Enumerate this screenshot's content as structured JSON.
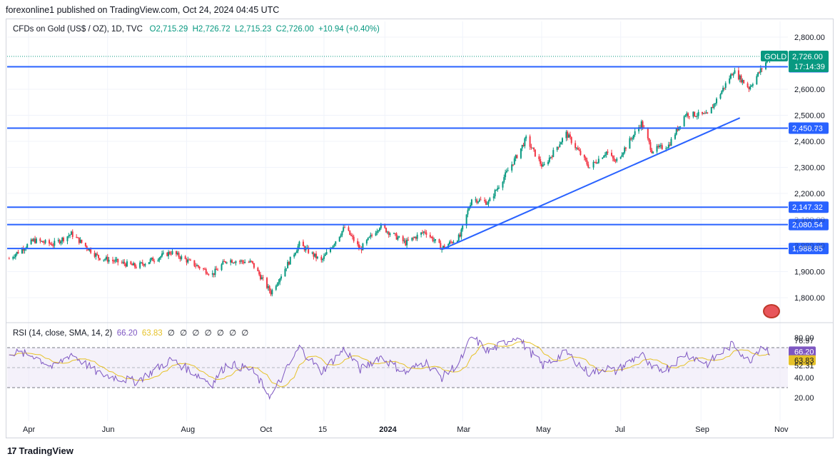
{
  "header": {
    "published": "forexonline1 published on TradingView.com, Oct 24, 2024 04:45 UTC"
  },
  "legend": {
    "symbol": "CFDs on Gold (US$ / OZ), 1D, TVC",
    "open": "O2,715.29",
    "high": "H2,726.72",
    "low": "L2,715.23",
    "close": "C2,726.00",
    "change": "+10.94 (+0.40%)"
  },
  "rsi_legend": {
    "title": "RSI (14, close, SMA, 14, 2)",
    "rsi_value": "66.20",
    "sma_value": "63.83",
    "placeholders": [
      "∅",
      "∅",
      "∅",
      "∅",
      "∅",
      "∅",
      "∅"
    ]
  },
  "footer": {
    "brand": "TradingView",
    "logo": "17"
  },
  "colors": {
    "up": "#089981",
    "down": "#f23645",
    "line": "#2962ff",
    "rsi": "#7e57c2",
    "sma": "#e6c229",
    "band": "#ede7f6"
  },
  "chart_data": [
    {
      "type": "candlestick",
      "title": "CFDs on Gold (US$ / OZ), 1D, TVC",
      "symbol_tag": "GOLD",
      "countdown": "17:14:39",
      "ylim": [
        1730,
        2830
      ],
      "y_ticks": [
        "2,800.00",
        "2,600.00",
        "2,500.00",
        "2,400.00",
        "2,300.00",
        "2,200.00",
        "2,100.00",
        "2,000.00",
        "1,900.00",
        "1,800.00"
      ],
      "y_tick_values": [
        2800,
        2600,
        2500,
        2400,
        2300,
        2200,
        2100,
        2000,
        1900,
        1800
      ],
      "x_ticks": [
        "Apr",
        "Jun",
        "Aug",
        "Oct",
        "15",
        "2024",
        "Mar",
        "May",
        "Jul",
        "Sep",
        "Nov"
      ],
      "x_tick_dates": [
        "2023-04-01",
        "2023-06-01",
        "2023-08-01",
        "2023-10-01",
        "2023-11-15",
        "2024-01-01",
        "2024-03-01",
        "2024-05-01",
        "2024-07-01",
        "2024-09-01",
        "2024-11-01"
      ],
      "date_range": [
        "2023-03-15",
        "2024-11-15"
      ],
      "last_price": {
        "label": "2,726.00",
        "value": 2726.0
      },
      "horizontal_lines": [
        {
          "label": "2,686.34",
          "value": 2686.34
        },
        {
          "label": "2,450.73",
          "value": 2450.73
        },
        {
          "label": "2,147.32",
          "value": 2147.32
        },
        {
          "label": "2,080.54",
          "value": 2080.54
        },
        {
          "label": "1,988.85",
          "value": 1988.85
        }
      ],
      "trendline": {
        "start": {
          "date": "2024-02-14",
          "value": 1985
        },
        "end": {
          "date": "2024-10-01",
          "value": 2490
        }
      },
      "close_anchors": [
        {
          "date": "2023-03-17",
          "value": 1950
        },
        {
          "date": "2023-04-05",
          "value": 2020
        },
        {
          "date": "2023-04-20",
          "value": 2005
        },
        {
          "date": "2023-05-04",
          "value": 2045
        },
        {
          "date": "2023-05-25",
          "value": 1955
        },
        {
          "date": "2023-06-23",
          "value": 1920
        },
        {
          "date": "2023-07-20",
          "value": 1975
        },
        {
          "date": "2023-08-21",
          "value": 1890
        },
        {
          "date": "2023-09-01",
          "value": 1945
        },
        {
          "date": "2023-09-20",
          "value": 1935
        },
        {
          "date": "2023-10-05",
          "value": 1820
        },
        {
          "date": "2023-10-27",
          "value": 2005
        },
        {
          "date": "2023-11-13",
          "value": 1940
        },
        {
          "date": "2023-12-01",
          "value": 2070
        },
        {
          "date": "2023-12-13",
          "value": 1985
        },
        {
          "date": "2023-12-28",
          "value": 2075
        },
        {
          "date": "2024-01-17",
          "value": 2010
        },
        {
          "date": "2024-02-01",
          "value": 2055
        },
        {
          "date": "2024-02-14",
          "value": 1990
        },
        {
          "date": "2024-02-28",
          "value": 2035
        },
        {
          "date": "2024-03-08",
          "value": 2180
        },
        {
          "date": "2024-03-21",
          "value": 2165
        },
        {
          "date": "2024-04-12",
          "value": 2345
        },
        {
          "date": "2024-04-19",
          "value": 2410
        },
        {
          "date": "2024-05-02",
          "value": 2300
        },
        {
          "date": "2024-05-20",
          "value": 2430
        },
        {
          "date": "2024-06-07",
          "value": 2300
        },
        {
          "date": "2024-06-20",
          "value": 2360
        },
        {
          "date": "2024-06-27",
          "value": 2320
        },
        {
          "date": "2024-07-17",
          "value": 2470
        },
        {
          "date": "2024-07-25",
          "value": 2365
        },
        {
          "date": "2024-08-07",
          "value": 2385
        },
        {
          "date": "2024-08-20",
          "value": 2505
        },
        {
          "date": "2024-09-06",
          "value": 2500
        },
        {
          "date": "2024-09-26",
          "value": 2670
        },
        {
          "date": "2024-10-08",
          "value": 2605
        },
        {
          "date": "2024-10-24",
          "value": 2726
        }
      ]
    },
    {
      "type": "line",
      "title": "RSI (14, close, SMA, 14, 2)",
      "ylim": [
        15,
        88
      ],
      "y_ticks": [
        "80.00",
        "76.97",
        "66.20",
        "63.83",
        "52.31",
        "40.00",
        "20.00"
      ],
      "y_tick_values": [
        80,
        76.97,
        66.2,
        63.83,
        52.31,
        40,
        20
      ],
      "band": [
        30,
        70
      ],
      "series": [
        {
          "name": "RSI",
          "value": "66.20"
        },
        {
          "name": "RSI-based MA",
          "value": "63.83"
        }
      ],
      "rsi_anchors": [
        {
          "date": "2023-03-17",
          "value": 66
        },
        {
          "date": "2023-04-05",
          "value": 62
        },
        {
          "date": "2023-04-20",
          "value": 50
        },
        {
          "date": "2023-05-04",
          "value": 64
        },
        {
          "date": "2023-05-25",
          "value": 44
        },
        {
          "date": "2023-06-23",
          "value": 36
        },
        {
          "date": "2023-07-20",
          "value": 58
        },
        {
          "date": "2023-08-21",
          "value": 34
        },
        {
          "date": "2023-09-01",
          "value": 54
        },
        {
          "date": "2023-09-20",
          "value": 48
        },
        {
          "date": "2023-10-05",
          "value": 21
        },
        {
          "date": "2023-10-27",
          "value": 70
        },
        {
          "date": "2023-11-13",
          "value": 46
        },
        {
          "date": "2023-12-01",
          "value": 69
        },
        {
          "date": "2023-12-13",
          "value": 48
        },
        {
          "date": "2023-12-28",
          "value": 61
        },
        {
          "date": "2024-01-17",
          "value": 45
        },
        {
          "date": "2024-02-01",
          "value": 56
        },
        {
          "date": "2024-02-14",
          "value": 40
        },
        {
          "date": "2024-02-28",
          "value": 56
        },
        {
          "date": "2024-03-08",
          "value": 81
        },
        {
          "date": "2024-03-21",
          "value": 66
        },
        {
          "date": "2024-04-12",
          "value": 82
        },
        {
          "date": "2024-04-19",
          "value": 70
        },
        {
          "date": "2024-05-02",
          "value": 52
        },
        {
          "date": "2024-05-20",
          "value": 65
        },
        {
          "date": "2024-06-07",
          "value": 44
        },
        {
          "date": "2024-06-20",
          "value": 50
        },
        {
          "date": "2024-06-27",
          "value": 46
        },
        {
          "date": "2024-07-17",
          "value": 64
        },
        {
          "date": "2024-07-25",
          "value": 48
        },
        {
          "date": "2024-08-07",
          "value": 50
        },
        {
          "date": "2024-08-20",
          "value": 64
        },
        {
          "date": "2024-09-06",
          "value": 54
        },
        {
          "date": "2024-09-26",
          "value": 74
        },
        {
          "date": "2024-10-08",
          "value": 56
        },
        {
          "date": "2024-10-18",
          "value": 73
        },
        {
          "date": "2024-10-24",
          "value": 66
        }
      ]
    }
  ]
}
